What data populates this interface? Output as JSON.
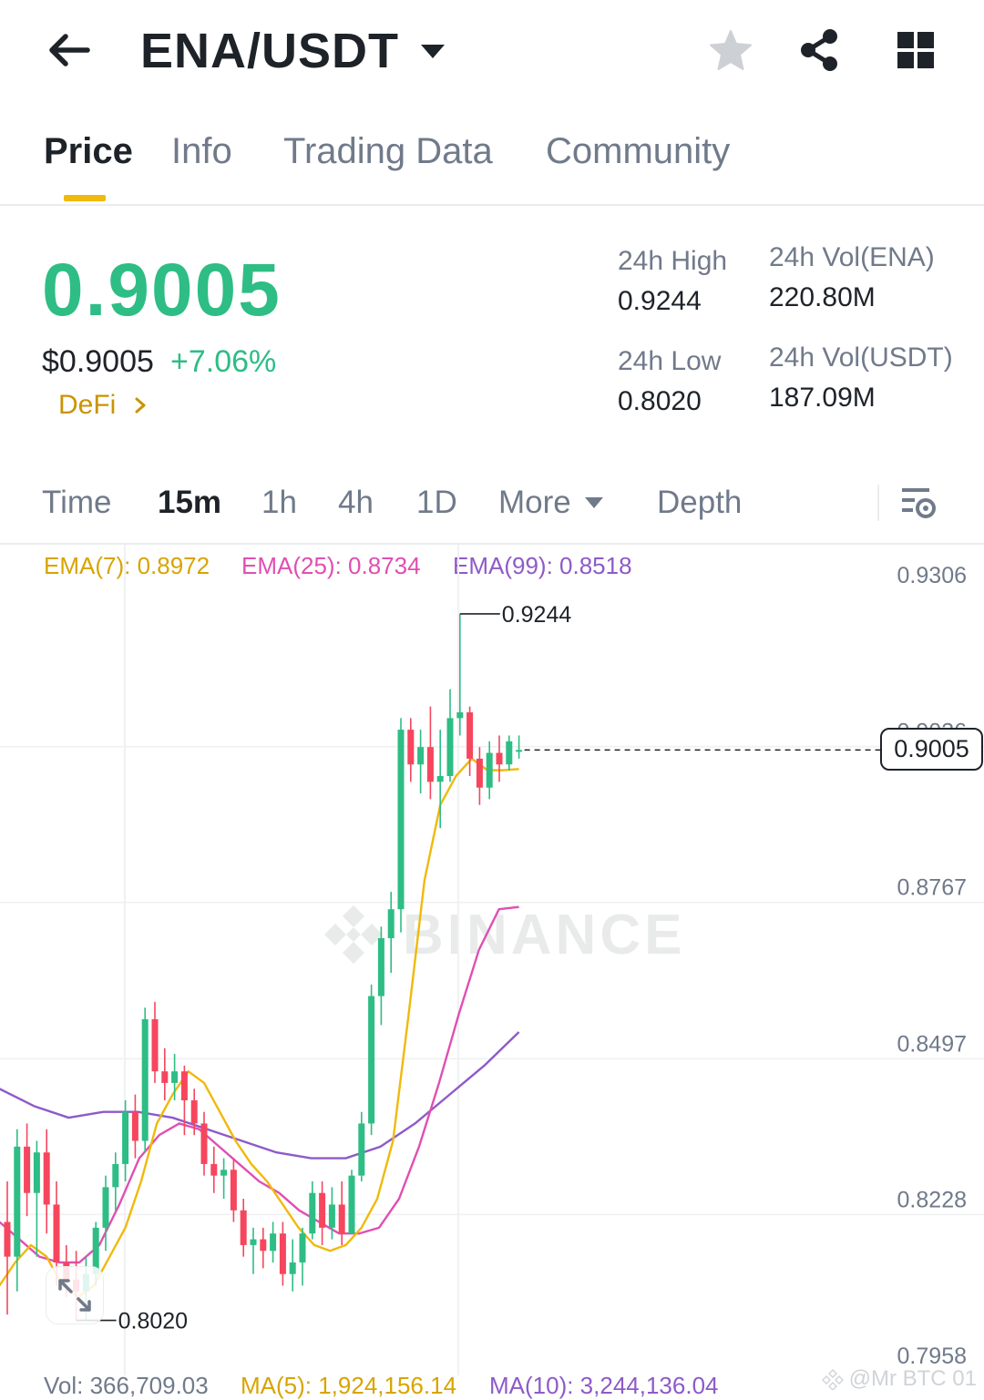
{
  "header": {
    "pair": "ENA/USDT",
    "icons": [
      "back-arrow-icon",
      "dropdown-caret-icon",
      "star-icon",
      "share-icon",
      "grid-icon"
    ]
  },
  "tabs": [
    "Price",
    "Info",
    "Trading Data",
    "Community"
  ],
  "price": {
    "last": "0.9005",
    "usd": "$0.9005",
    "change": "+7.06%",
    "tag": "DeFi"
  },
  "stats": {
    "high_label": "24h High",
    "high": "0.9244",
    "low_label": "24h Low",
    "low": "0.8020",
    "vol_ena_label": "24h Vol(ENA)",
    "vol_ena": "220.80M",
    "vol_usdt_label": "24h Vol(USDT)",
    "vol_usdt": "187.09M"
  },
  "intervals": {
    "time": "Time",
    "m15": "15m",
    "h1": "1h",
    "h4": "4h",
    "d1": "1D",
    "more": "More",
    "depth": "Depth",
    "active": "15m"
  },
  "indicators": {
    "ema7": "EMA(7): 0.8972",
    "ema25": "EMA(25): 0.8734",
    "ema99": "EMA(99): 0.8518"
  },
  "chart": {
    "y_ticks": [
      "0.9306",
      "0.9036",
      "0.8767",
      "0.8497",
      "0.8228",
      "0.7958"
    ],
    "high_marker": "0.9244",
    "low_marker": "0.8020",
    "current": "0.9005",
    "watermark": "BINANCE"
  },
  "chart_data": {
    "type": "candlestick",
    "interval": "15m",
    "ylim": [
      0.7958,
      0.9306
    ],
    "candles": [
      {
        "o": 0.819,
        "h": 0.826,
        "l": 0.803,
        "c": 0.813
      },
      {
        "o": 0.813,
        "h": 0.835,
        "l": 0.807,
        "c": 0.832
      },
      {
        "o": 0.832,
        "h": 0.836,
        "l": 0.82,
        "c": 0.824
      },
      {
        "o": 0.824,
        "h": 0.833,
        "l": 0.813,
        "c": 0.831
      },
      {
        "o": 0.831,
        "h": 0.835,
        "l": 0.817,
        "c": 0.822
      },
      {
        "o": 0.822,
        "h": 0.826,
        "l": 0.808,
        "c": 0.812
      },
      {
        "o": 0.812,
        "h": 0.815,
        "l": 0.806,
        "c": 0.809
      },
      {
        "o": 0.809,
        "h": 0.814,
        "l": 0.802,
        "c": 0.807
      },
      {
        "o": 0.807,
        "h": 0.813,
        "l": 0.802,
        "c": 0.81
      },
      {
        "o": 0.81,
        "h": 0.819,
        "l": 0.808,
        "c": 0.818
      },
      {
        "o": 0.818,
        "h": 0.827,
        "l": 0.814,
        "c": 0.825
      },
      {
        "o": 0.825,
        "h": 0.831,
        "l": 0.821,
        "c": 0.829
      },
      {
        "o": 0.829,
        "h": 0.84,
        "l": 0.826,
        "c": 0.838
      },
      {
        "o": 0.838,
        "h": 0.841,
        "l": 0.83,
        "c": 0.833
      },
      {
        "o": 0.833,
        "h": 0.856,
        "l": 0.831,
        "c": 0.854
      },
      {
        "o": 0.854,
        "h": 0.857,
        "l": 0.843,
        "c": 0.845
      },
      {
        "o": 0.845,
        "h": 0.849,
        "l": 0.84,
        "c": 0.843
      },
      {
        "o": 0.843,
        "h": 0.848,
        "l": 0.84,
        "c": 0.845
      },
      {
        "o": 0.845,
        "h": 0.846,
        "l": 0.834,
        "c": 0.84
      },
      {
        "o": 0.84,
        "h": 0.842,
        "l": 0.834,
        "c": 0.836
      },
      {
        "o": 0.836,
        "h": 0.838,
        "l": 0.827,
        "c": 0.829
      },
      {
        "o": 0.829,
        "h": 0.832,
        "l": 0.824,
        "c": 0.827
      },
      {
        "o": 0.827,
        "h": 0.83,
        "l": 0.823,
        "c": 0.828
      },
      {
        "o": 0.828,
        "h": 0.83,
        "l": 0.819,
        "c": 0.821
      },
      {
        "o": 0.821,
        "h": 0.823,
        "l": 0.813,
        "c": 0.815
      },
      {
        "o": 0.815,
        "h": 0.818,
        "l": 0.81,
        "c": 0.816
      },
      {
        "o": 0.816,
        "h": 0.818,
        "l": 0.811,
        "c": 0.814
      },
      {
        "o": 0.814,
        "h": 0.819,
        "l": 0.812,
        "c": 0.817
      },
      {
        "o": 0.817,
        "h": 0.819,
        "l": 0.808,
        "c": 0.81
      },
      {
        "o": 0.81,
        "h": 0.816,
        "l": 0.807,
        "c": 0.812
      },
      {
        "o": 0.812,
        "h": 0.818,
        "l": 0.808,
        "c": 0.817
      },
      {
        "o": 0.817,
        "h": 0.826,
        "l": 0.816,
        "c": 0.824
      },
      {
        "o": 0.824,
        "h": 0.826,
        "l": 0.815,
        "c": 0.818
      },
      {
        "o": 0.818,
        "h": 0.825,
        "l": 0.816,
        "c": 0.822
      },
      {
        "o": 0.822,
        "h": 0.826,
        "l": 0.815,
        "c": 0.817
      },
      {
        "o": 0.817,
        "h": 0.828,
        "l": 0.817,
        "c": 0.827
      },
      {
        "o": 0.827,
        "h": 0.838,
        "l": 0.826,
        "c": 0.836
      },
      {
        "o": 0.836,
        "h": 0.86,
        "l": 0.834,
        "c": 0.858
      },
      {
        "o": 0.858,
        "h": 0.87,
        "l": 0.853,
        "c": 0.868
      },
      {
        "o": 0.868,
        "h": 0.876,
        "l": 0.862,
        "c": 0.873
      },
      {
        "o": 0.873,
        "h": 0.906,
        "l": 0.869,
        "c": 0.904
      },
      {
        "o": 0.904,
        "h": 0.906,
        "l": 0.895,
        "c": 0.898
      },
      {
        "o": 0.898,
        "h": 0.904,
        "l": 0.893,
        "c": 0.901
      },
      {
        "o": 0.901,
        "h": 0.908,
        "l": 0.892,
        "c": 0.895
      },
      {
        "o": 0.895,
        "h": 0.904,
        "l": 0.887,
        "c": 0.896
      },
      {
        "o": 0.896,
        "h": 0.911,
        "l": 0.895,
        "c": 0.906
      },
      {
        "o": 0.906,
        "h": 0.924,
        "l": 0.903,
        "c": 0.907
      },
      {
        "o": 0.907,
        "h": 0.908,
        "l": 0.896,
        "c": 0.899
      },
      {
        "o": 0.899,
        "h": 0.901,
        "l": 0.891,
        "c": 0.894
      },
      {
        "o": 0.894,
        "h": 0.902,
        "l": 0.892,
        "c": 0.9
      },
      {
        "o": 0.9,
        "h": 0.903,
        "l": 0.895,
        "c": 0.898
      },
      {
        "o": 0.898,
        "h": 0.903,
        "l": 0.897,
        "c": 0.902
      },
      {
        "o": 0.9005,
        "h": 0.903,
        "l": 0.899,
        "c": 0.9005
      }
    ],
    "ema7": [
      0.808,
      0.812,
      0.815,
      0.813,
      0.808,
      0.806,
      0.808,
      0.813,
      0.818,
      0.826,
      0.836,
      0.841,
      0.845,
      0.843,
      0.838,
      0.833,
      0.829,
      0.826,
      0.822,
      0.818,
      0.815,
      0.814,
      0.815,
      0.818,
      0.823,
      0.833,
      0.855,
      0.878,
      0.891,
      0.896,
      0.899,
      0.897,
      0.897,
      0.8972
    ],
    "ema25": [
      0.819,
      0.816,
      0.813,
      0.812,
      0.812,
      0.815,
      0.822,
      0.83,
      0.834,
      0.836,
      0.835,
      0.832,
      0.829,
      0.826,
      0.824,
      0.821,
      0.819,
      0.817,
      0.817,
      0.818,
      0.823,
      0.832,
      0.843,
      0.855,
      0.866,
      0.873,
      0.8734
    ],
    "ema99": [
      0.842,
      0.839,
      0.837,
      0.838,
      0.838,
      0.837,
      0.835,
      0.833,
      0.831,
      0.83,
      0.83,
      0.832,
      0.836,
      0.841,
      0.846,
      0.8518
    ]
  },
  "volume": {
    "vol": "Vol: 366,709.03",
    "ma5": "MA(5): 1,924,156.14",
    "ma10": "MA(10): 3,244,136.04"
  },
  "credit": "@Mr BTC 01",
  "colors": {
    "up": "#2ebd85",
    "down": "#f6465d",
    "ema7": "#f0b90b",
    "ema25": "#e04fb2",
    "ema99": "#8e5ac8",
    "accent": "#f0b90b"
  }
}
